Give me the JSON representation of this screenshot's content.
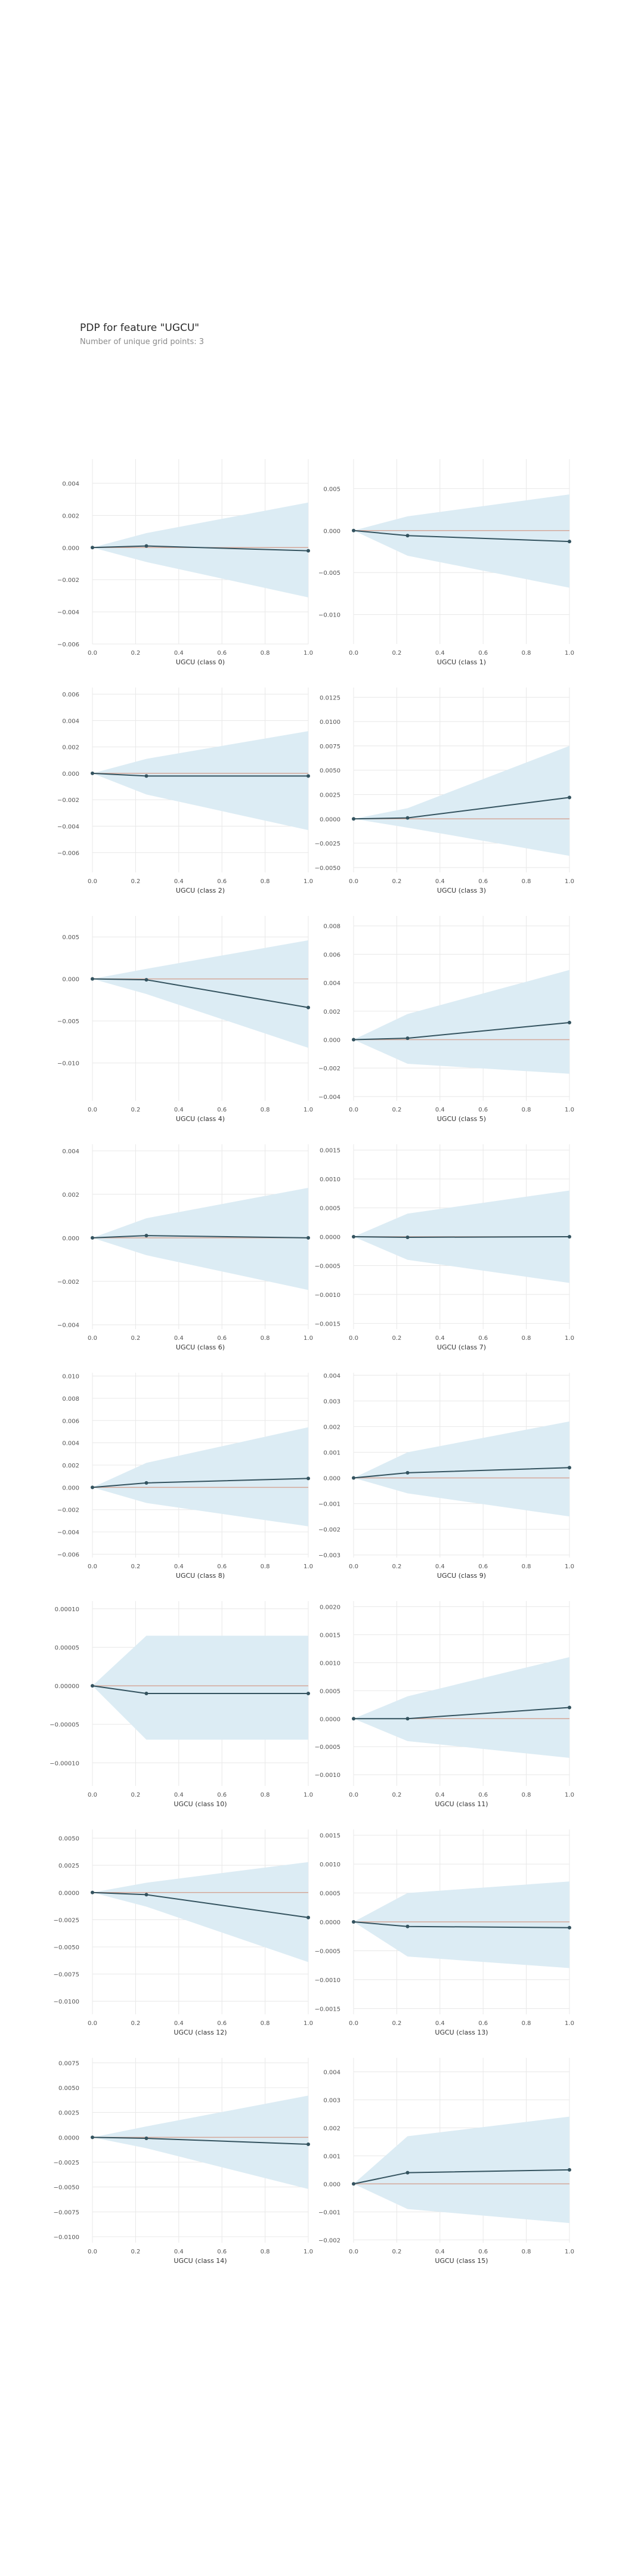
{
  "figure": {
    "title": "PDP for feature \"UGCU\"",
    "subtitle": "Number of unique grid points: 3"
  },
  "style": {
    "band_color": "#dcecf4",
    "line_color": "#34535f",
    "zero_line_color": "#d4a89a",
    "grid_color": "#e8e8e8",
    "tick_color": "#555555"
  },
  "chart_data": [
    {
      "type": "line",
      "xlabel": "UGCU (class 0)",
      "x": [
        0.0,
        0.25,
        1.0
      ],
      "y": [
        0.0,
        0.0001,
        -0.0002
      ],
      "upper": [
        0.0,
        0.0009,
        0.0028
      ],
      "lower": [
        0.0,
        -0.0009,
        -0.0031
      ],
      "ylim": [
        -0.006,
        0.0055
      ],
      "yticks": [
        -0.006,
        -0.004,
        -0.002,
        0.0,
        0.002,
        0.004
      ],
      "ytick_labels": [
        "−0.006",
        "−0.004",
        "−0.002",
        "0.000",
        "0.002",
        "0.004"
      ],
      "xticks": [
        0.0,
        0.2,
        0.4,
        0.6,
        0.8,
        1.0
      ],
      "xtick_labels": [
        "0.0",
        "0.2",
        "0.4",
        "0.6",
        "0.8",
        "1.0"
      ]
    },
    {
      "type": "line",
      "xlabel": "UGCU (class 1)",
      "x": [
        0.0,
        0.25,
        1.0
      ],
      "y": [
        0.0,
        -0.0006,
        -0.0013
      ],
      "upper": [
        0.0,
        0.0017,
        0.0043
      ],
      "lower": [
        0.0,
        -0.003,
        -0.0068
      ],
      "ylim": [
        -0.0135,
        0.0085
      ],
      "yticks": [
        -0.01,
        -0.005,
        0.0,
        0.005
      ],
      "ytick_labels": [
        "−0.010",
        "−0.005",
        "0.000",
        "0.005"
      ],
      "xticks": [
        0.0,
        0.2,
        0.4,
        0.6,
        0.8,
        1.0
      ],
      "xtick_labels": [
        "0.0",
        "0.2",
        "0.4",
        "0.6",
        "0.8",
        "1.0"
      ]
    },
    {
      "type": "line",
      "xlabel": "UGCU (class 2)",
      "x": [
        0.0,
        0.25,
        1.0
      ],
      "y": [
        0.0,
        -0.0002,
        -0.0002
      ],
      "upper": [
        0.0,
        0.0011,
        0.0032
      ],
      "lower": [
        0.0,
        -0.0016,
        -0.0043
      ],
      "ylim": [
        -0.0075,
        0.0065
      ],
      "yticks": [
        -0.006,
        -0.004,
        -0.002,
        0.0,
        0.002,
        0.004,
        0.006
      ],
      "ytick_labels": [
        "−0.006",
        "−0.004",
        "−0.002",
        "0.000",
        "0.002",
        "0.004",
        "0.006"
      ],
      "xticks": [
        0.0,
        0.2,
        0.4,
        0.6,
        0.8,
        1.0
      ],
      "xtick_labels": [
        "0.0",
        "0.2",
        "0.4",
        "0.6",
        "0.8",
        "1.0"
      ]
    },
    {
      "type": "line",
      "xlabel": "UGCU (class 3)",
      "x": [
        0.0,
        0.25,
        1.0
      ],
      "y": [
        0.0,
        0.0001,
        0.0022
      ],
      "upper": [
        0.0,
        0.0011,
        0.0075
      ],
      "lower": [
        0.0,
        -0.0009,
        -0.0038
      ],
      "ylim": [
        -0.0055,
        0.0135
      ],
      "yticks": [
        -0.005,
        -0.0025,
        0.0,
        0.0025,
        0.005,
        0.0075,
        0.01,
        0.0125
      ],
      "ytick_labels": [
        "−0.0050",
        "−0.0025",
        "0.0000",
        "0.0025",
        "0.0050",
        "0.0075",
        "0.0100",
        "0.0125"
      ],
      "xticks": [
        0.0,
        0.2,
        0.4,
        0.6,
        0.8,
        1.0
      ],
      "xtick_labels": [
        "0.0",
        "0.2",
        "0.4",
        "0.6",
        "0.8",
        "1.0"
      ]
    },
    {
      "type": "line",
      "xlabel": "UGCU (class 4)",
      "x": [
        0.0,
        0.25,
        1.0
      ],
      "y": [
        0.0,
        -0.0001,
        -0.0034
      ],
      "upper": [
        0.0,
        0.0012,
        0.0046
      ],
      "lower": [
        0.0,
        -0.0018,
        -0.0082
      ],
      "ylim": [
        -0.0145,
        0.0075
      ],
      "yticks": [
        -0.01,
        -0.005,
        0.0,
        0.005
      ],
      "ytick_labels": [
        "−0.010",
        "−0.005",
        "0.000",
        "0.005"
      ],
      "xticks": [
        0.0,
        0.2,
        0.4,
        0.6,
        0.8,
        1.0
      ],
      "xtick_labels": [
        "0.0",
        "0.2",
        "0.4",
        "0.6",
        "0.8",
        "1.0"
      ]
    },
    {
      "type": "line",
      "xlabel": "UGCU (class 5)",
      "x": [
        0.0,
        0.25,
        1.0
      ],
      "y": [
        0.0,
        0.0001,
        0.0012
      ],
      "upper": [
        0.0,
        0.0018,
        0.0049
      ],
      "lower": [
        0.0,
        -0.0017,
        -0.0024
      ],
      "ylim": [
        -0.0043,
        0.0087
      ],
      "yticks": [
        -0.004,
        -0.002,
        0.0,
        0.002,
        0.004,
        0.006,
        0.008
      ],
      "ytick_labels": [
        "−0.004",
        "−0.002",
        "0.000",
        "0.002",
        "0.004",
        "0.006",
        "0.008"
      ],
      "xticks": [
        0.0,
        0.2,
        0.4,
        0.6,
        0.8,
        1.0
      ],
      "xtick_labels": [
        "0.0",
        "0.2",
        "0.4",
        "0.6",
        "0.8",
        "1.0"
      ]
    },
    {
      "type": "line",
      "xlabel": "UGCU (class 6)",
      "x": [
        0.0,
        0.25,
        1.0
      ],
      "y": [
        0.0,
        0.0001,
        0.0
      ],
      "upper": [
        0.0,
        0.0009,
        0.0023
      ],
      "lower": [
        0.0,
        -0.0008,
        -0.0024
      ],
      "ylim": [
        -0.0042,
        0.0043
      ],
      "yticks": [
        -0.004,
        -0.002,
        0.0,
        0.002,
        0.004
      ],
      "ytick_labels": [
        "−0.004",
        "−0.002",
        "0.000",
        "0.002",
        "0.004"
      ],
      "xticks": [
        0.0,
        0.2,
        0.4,
        0.6,
        0.8,
        1.0
      ],
      "xtick_labels": [
        "0.0",
        "0.2",
        "0.4",
        "0.6",
        "0.8",
        "1.0"
      ]
    },
    {
      "type": "line",
      "xlabel": "UGCU (class 7)",
      "x": [
        0.0,
        0.25,
        1.0
      ],
      "y": [
        0.0,
        -1e-05,
        0.0
      ],
      "upper": [
        0.0,
        0.0004,
        0.0008
      ],
      "lower": [
        0.0,
        -0.0004,
        -0.0008
      ],
      "ylim": [
        -0.0016,
        0.0016
      ],
      "yticks": [
        -0.0015,
        -0.001,
        -0.0005,
        0.0,
        0.0005,
        0.001,
        0.0015
      ],
      "ytick_labels": [
        "−0.0015",
        "−0.0010",
        "−0.0005",
        "0.0000",
        "0.0005",
        "0.0010",
        "0.0015"
      ],
      "xticks": [
        0.0,
        0.2,
        0.4,
        0.6,
        0.8,
        1.0
      ],
      "xtick_labels": [
        "0.0",
        "0.2",
        "0.4",
        "0.6",
        "0.8",
        "1.0"
      ]
    },
    {
      "type": "line",
      "xlabel": "UGCU (class 8)",
      "x": [
        0.0,
        0.25,
        1.0
      ],
      "y": [
        0.0,
        0.0004,
        0.0008
      ],
      "upper": [
        0.0,
        0.0022,
        0.0054
      ],
      "lower": [
        0.0,
        -0.0014,
        -0.0035
      ],
      "ylim": [
        -0.0063,
        0.0103
      ],
      "yticks": [
        -0.006,
        -0.004,
        -0.002,
        0.0,
        0.002,
        0.004,
        0.006,
        0.008,
        0.01
      ],
      "ytick_labels": [
        "−0.006",
        "−0.004",
        "−0.002",
        "0.000",
        "0.002",
        "0.004",
        "0.006",
        "0.008",
        "0.010"
      ],
      "xticks": [
        0.0,
        0.2,
        0.4,
        0.6,
        0.8,
        1.0
      ],
      "xtick_labels": [
        "0.0",
        "0.2",
        "0.4",
        "0.6",
        "0.8",
        "1.0"
      ]
    },
    {
      "type": "line",
      "xlabel": "UGCU (class 9)",
      "x": [
        0.0,
        0.25,
        1.0
      ],
      "y": [
        0.0,
        0.0002,
        0.0004
      ],
      "upper": [
        0.0,
        0.001,
        0.0022
      ],
      "lower": [
        0.0,
        -0.0006,
        -0.0015
      ],
      "ylim": [
        -0.0031,
        0.0041
      ],
      "yticks": [
        -0.003,
        -0.002,
        -0.001,
        0.0,
        0.001,
        0.002,
        0.003,
        0.004
      ],
      "ytick_labels": [
        "−0.003",
        "−0.002",
        "−0.001",
        "0.000",
        "0.001",
        "0.002",
        "0.003",
        "0.004"
      ],
      "xticks": [
        0.0,
        0.2,
        0.4,
        0.6,
        0.8,
        1.0
      ],
      "xtick_labels": [
        "0.0",
        "0.2",
        "0.4",
        "0.6",
        "0.8",
        "1.0"
      ]
    },
    {
      "type": "line",
      "xlabel": "UGCU (class 10)",
      "x": [
        0.0,
        0.25,
        1.0
      ],
      "y": [
        0.0,
        -1e-05,
        -1e-05
      ],
      "upper": [
        0.0,
        6.5e-05,
        6.5e-05
      ],
      "lower": [
        0.0,
        -7e-05,
        -7e-05
      ],
      "ylim": [
        -0.00013,
        0.00011
      ],
      "yticks": [
        -0.0001,
        -5e-05,
        0.0,
        5e-05,
        0.0001
      ],
      "ytick_labels": [
        "−0.00010",
        "−0.00005",
        "0.00000",
        "0.00005",
        "0.00010"
      ],
      "xticks": [
        0.0,
        0.2,
        0.4,
        0.6,
        0.8,
        1.0
      ],
      "xtick_labels": [
        "0.0",
        "0.2",
        "0.4",
        "0.6",
        "0.8",
        "1.0"
      ]
    },
    {
      "type": "line",
      "xlabel": "UGCU (class 11)",
      "x": [
        0.0,
        0.25,
        1.0
      ],
      "y": [
        0.0,
        0.0,
        0.0002
      ],
      "upper": [
        0.0,
        0.0004,
        0.0011
      ],
      "lower": [
        0.0,
        -0.0004,
        -0.0007
      ],
      "ylim": [
        -0.0012,
        0.0021
      ],
      "yticks": [
        -0.001,
        -0.0005,
        0.0,
        0.0005,
        0.001,
        0.0015,
        0.002
      ],
      "ytick_labels": [
        "−0.0010",
        "−0.0005",
        "0.0000",
        "0.0005",
        "0.0010",
        "0.0015",
        "0.0020"
      ],
      "xticks": [
        0.0,
        0.2,
        0.4,
        0.6,
        0.8,
        1.0
      ],
      "xtick_labels": [
        "0.0",
        "0.2",
        "0.4",
        "0.6",
        "0.8",
        "1.0"
      ]
    },
    {
      "type": "line",
      "xlabel": "UGCU (class 12)",
      "x": [
        0.0,
        0.25,
        1.0
      ],
      "y": [
        0.0,
        -0.0002,
        -0.0023
      ],
      "upper": [
        0.0,
        0.0009,
        0.0028
      ],
      "lower": [
        0.0,
        -0.0013,
        -0.0064
      ],
      "ylim": [
        -0.0112,
        0.0058
      ],
      "yticks": [
        -0.01,
        -0.0075,
        -0.005,
        -0.0025,
        0.0,
        0.0025,
        0.005
      ],
      "ytick_labels": [
        "−0.0100",
        "−0.0075",
        "−0.0050",
        "−0.0025",
        "0.0000",
        "0.0025",
        "0.0050"
      ],
      "xticks": [
        0.0,
        0.2,
        0.4,
        0.6,
        0.8,
        1.0
      ],
      "xtick_labels": [
        "0.0",
        "0.2",
        "0.4",
        "0.6",
        "0.8",
        "1.0"
      ]
    },
    {
      "type": "line",
      "xlabel": "UGCU (class 13)",
      "x": [
        0.0,
        0.25,
        1.0
      ],
      "y": [
        0.0,
        -8e-05,
        -0.0001
      ],
      "upper": [
        0.0,
        0.0005,
        0.0007
      ],
      "lower": [
        0.0,
        -0.0006,
        -0.0008
      ],
      "ylim": [
        -0.0016,
        0.0016
      ],
      "yticks": [
        -0.0015,
        -0.001,
        -0.0005,
        0.0,
        0.0005,
        0.001,
        0.0015
      ],
      "ytick_labels": [
        "−0.0015",
        "−0.0010",
        "−0.0005",
        "0.0000",
        "0.0005",
        "0.0010",
        "0.0015"
      ],
      "xticks": [
        0.0,
        0.2,
        0.4,
        0.6,
        0.8,
        1.0
      ],
      "xtick_labels": [
        "0.0",
        "0.2",
        "0.4",
        "0.6",
        "0.8",
        "1.0"
      ]
    },
    {
      "type": "line",
      "xlabel": "UGCU (class 14)",
      "x": [
        0.0,
        0.25,
        1.0
      ],
      "y": [
        0.0,
        -0.0001,
        -0.0007
      ],
      "upper": [
        0.0,
        0.0011,
        0.0042
      ],
      "lower": [
        0.0,
        -0.0011,
        -0.0052
      ],
      "ylim": [
        -0.0106,
        0.008
      ],
      "yticks": [
        -0.01,
        -0.0075,
        -0.005,
        -0.0025,
        0.0,
        0.0025,
        0.005,
        0.0075
      ],
      "ytick_labels": [
        "−0.0100",
        "−0.0075",
        "−0.0050",
        "−0.0025",
        "0.0000",
        "0.0025",
        "0.0050",
        "0.0075"
      ],
      "xticks": [
        0.0,
        0.2,
        0.4,
        0.6,
        0.8,
        1.0
      ],
      "xtick_labels": [
        "0.0",
        "0.2",
        "0.4",
        "0.6",
        "0.8",
        "1.0"
      ]
    },
    {
      "type": "line",
      "xlabel": "UGCU (class 15)",
      "x": [
        0.0,
        0.25,
        1.0
      ],
      "y": [
        0.0,
        0.0004,
        0.0005
      ],
      "upper": [
        0.0,
        0.0017,
        0.0024
      ],
      "lower": [
        0.0,
        -0.0009,
        -0.0014
      ],
      "ylim": [
        -0.0021,
        0.0045
      ],
      "yticks": [
        -0.002,
        -0.001,
        0.0,
        0.001,
        0.002,
        0.003,
        0.004
      ],
      "ytick_labels": [
        "−0.002",
        "−0.001",
        "0.000",
        "0.001",
        "0.002",
        "0.003",
        "0.004"
      ],
      "xticks": [
        0.0,
        0.2,
        0.4,
        0.6,
        0.8,
        1.0
      ],
      "xtick_labels": [
        "0.0",
        "0.2",
        "0.4",
        "0.6",
        "0.8",
        "1.0"
      ]
    }
  ]
}
